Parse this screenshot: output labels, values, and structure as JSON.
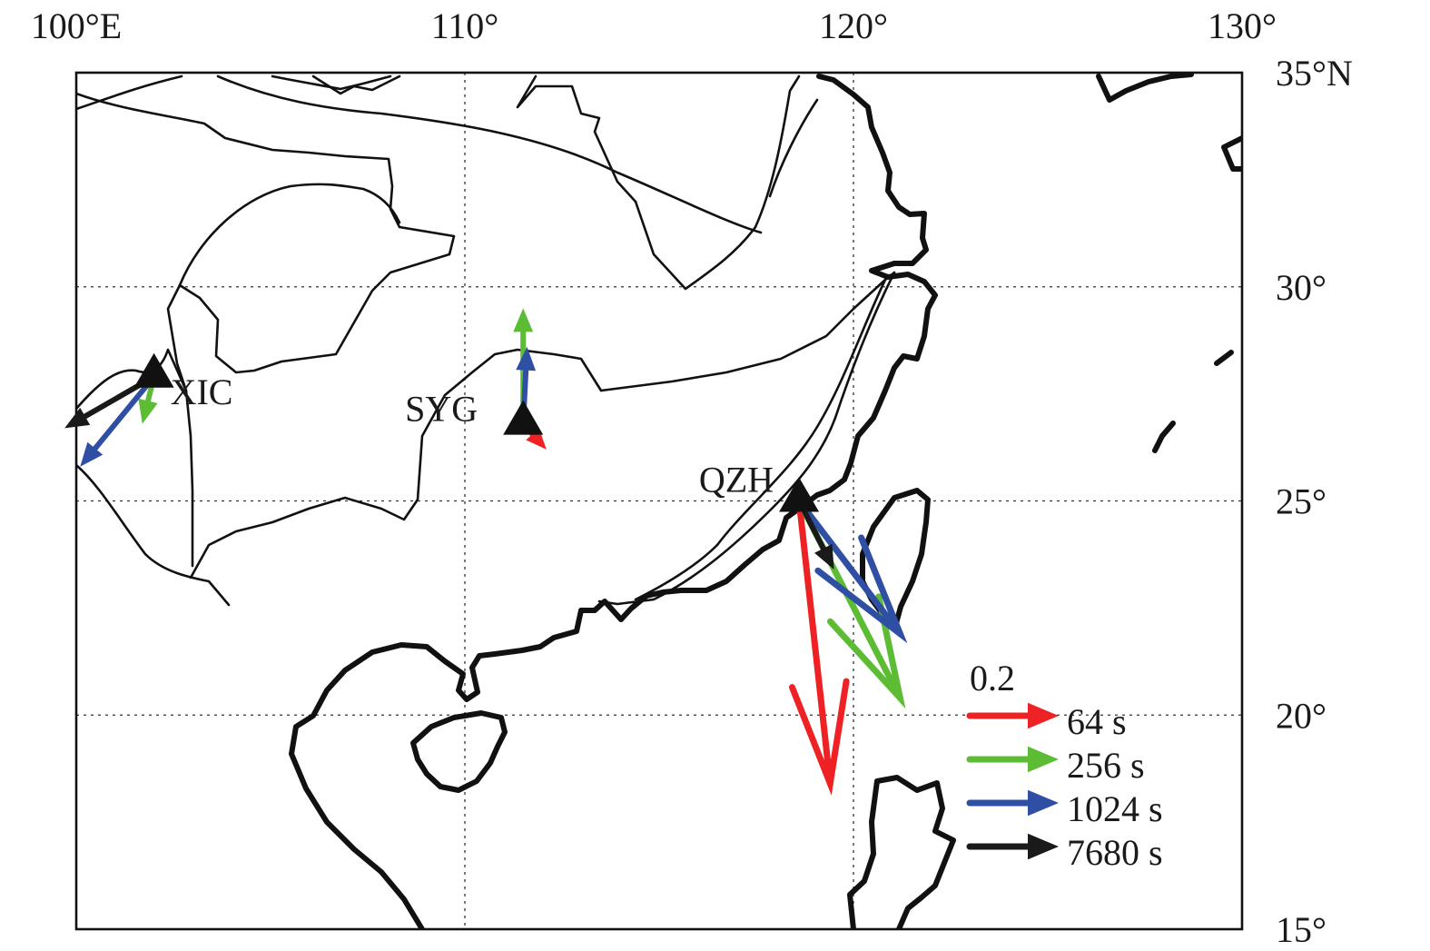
{
  "map": {
    "lon_range": [
      100,
      130
    ],
    "lat_range": [
      15,
      35
    ],
    "lon_ticks": [
      {
        "value": 100,
        "label": "100°E"
      },
      {
        "value": 110,
        "label": "110°"
      },
      {
        "value": 120,
        "label": "120°"
      },
      {
        "value": 130,
        "label": "130°"
      }
    ],
    "lat_ticks": [
      {
        "value": 35,
        "label": "35°N"
      },
      {
        "value": 30,
        "label": "30°"
      },
      {
        "value": 25,
        "label": "25°"
      },
      {
        "value": 20,
        "label": "20°"
      },
      {
        "value": 15,
        "label": "15°"
      }
    ],
    "gridlines": true
  },
  "stations": [
    {
      "code": "XIC",
      "lon": 102.0,
      "lat": 27.9
    },
    {
      "code": "SYG",
      "lon": 111.5,
      "lat": 26.8
    },
    {
      "code": "QZH",
      "lon": 118.6,
      "lat": 25.0
    }
  ],
  "legend": {
    "scale_label": "0.2",
    "items": [
      {
        "label": "64 s",
        "color": "#ee2224"
      },
      {
        "label": "256 s",
        "color": "#5cbd35"
      },
      {
        "label": "1024 s",
        "color": "#2e4fa3"
      },
      {
        "label": "7680 s",
        "color": "#1a1a1a"
      }
    ]
  },
  "vectors": [
    {
      "station": "XIC",
      "period": "64 s",
      "color": "#ee2224",
      "dlon": -0.2,
      "dlat": 0.2
    },
    {
      "station": "XIC",
      "period": "256 s",
      "color": "#5cbd35",
      "dlon": -0.3,
      "dlat": -1.1
    },
    {
      "station": "XIC",
      "period": "1024 s",
      "color": "#2e4fa3",
      "dlon": -1.9,
      "dlat": -2.1
    },
    {
      "station": "XIC",
      "period": "7680 s",
      "color": "#1a1a1a",
      "dlon": -2.3,
      "dlat": -1.2
    },
    {
      "station": "SYG",
      "period": "64 s",
      "color": "#ee2224",
      "dlon": 0.6,
      "dlat": -0.6
    },
    {
      "station": "SYG",
      "period": "256 s",
      "color": "#5cbd35",
      "dlon": 0.0,
      "dlat": 2.7
    },
    {
      "station": "SYG",
      "period": "1024 s",
      "color": "#2e4fa3",
      "dlon": 0.1,
      "dlat": 1.8
    },
    {
      "station": "SYG",
      "period": "7680 s",
      "color": "#1a1a1a",
      "dlon": 0.0,
      "dlat": 0.0
    },
    {
      "station": "QZH",
      "period": "64 s",
      "color": "#ee2224",
      "dlon": 0.8,
      "dlat": -6.6
    },
    {
      "station": "QZH",
      "period": "256 s",
      "color": "#5cbd35",
      "dlon": 2.6,
      "dlat": -4.6
    },
    {
      "station": "QZH",
      "period": "1024 s",
      "color": "#2e4fa3",
      "dlon": 2.6,
      "dlat": -3.1
    },
    {
      "station": "QZH",
      "period": "7680 s",
      "color": "#1a1a1a",
      "dlon": 0.9,
      "dlat": -1.6
    }
  ]
}
